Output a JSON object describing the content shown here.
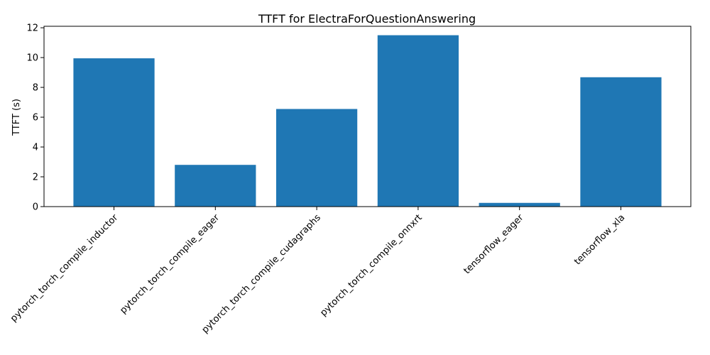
{
  "chart_data": {
    "type": "bar",
    "title": "TTFT for ElectraForQuestionAnswering",
    "xlabel": "",
    "ylabel": "TTFT (s)",
    "categories": [
      "pytorch_torch_compile_inductor",
      "pytorch_torch_compile_eager",
      "pytorch_torch_compile_cudagraphs",
      "pytorch_torch_compile_onnxrt",
      "tensorflow_eager",
      "tensorflow_xla"
    ],
    "values": [
      9.95,
      2.8,
      6.55,
      11.5,
      0.25,
      8.68
    ],
    "ylim": [
      0,
      12.1
    ],
    "yticks": [
      0,
      2,
      4,
      6,
      8,
      10,
      12
    ],
    "x_tick_rotation": 45,
    "grid": false,
    "bar_color": "#1f77b4"
  }
}
